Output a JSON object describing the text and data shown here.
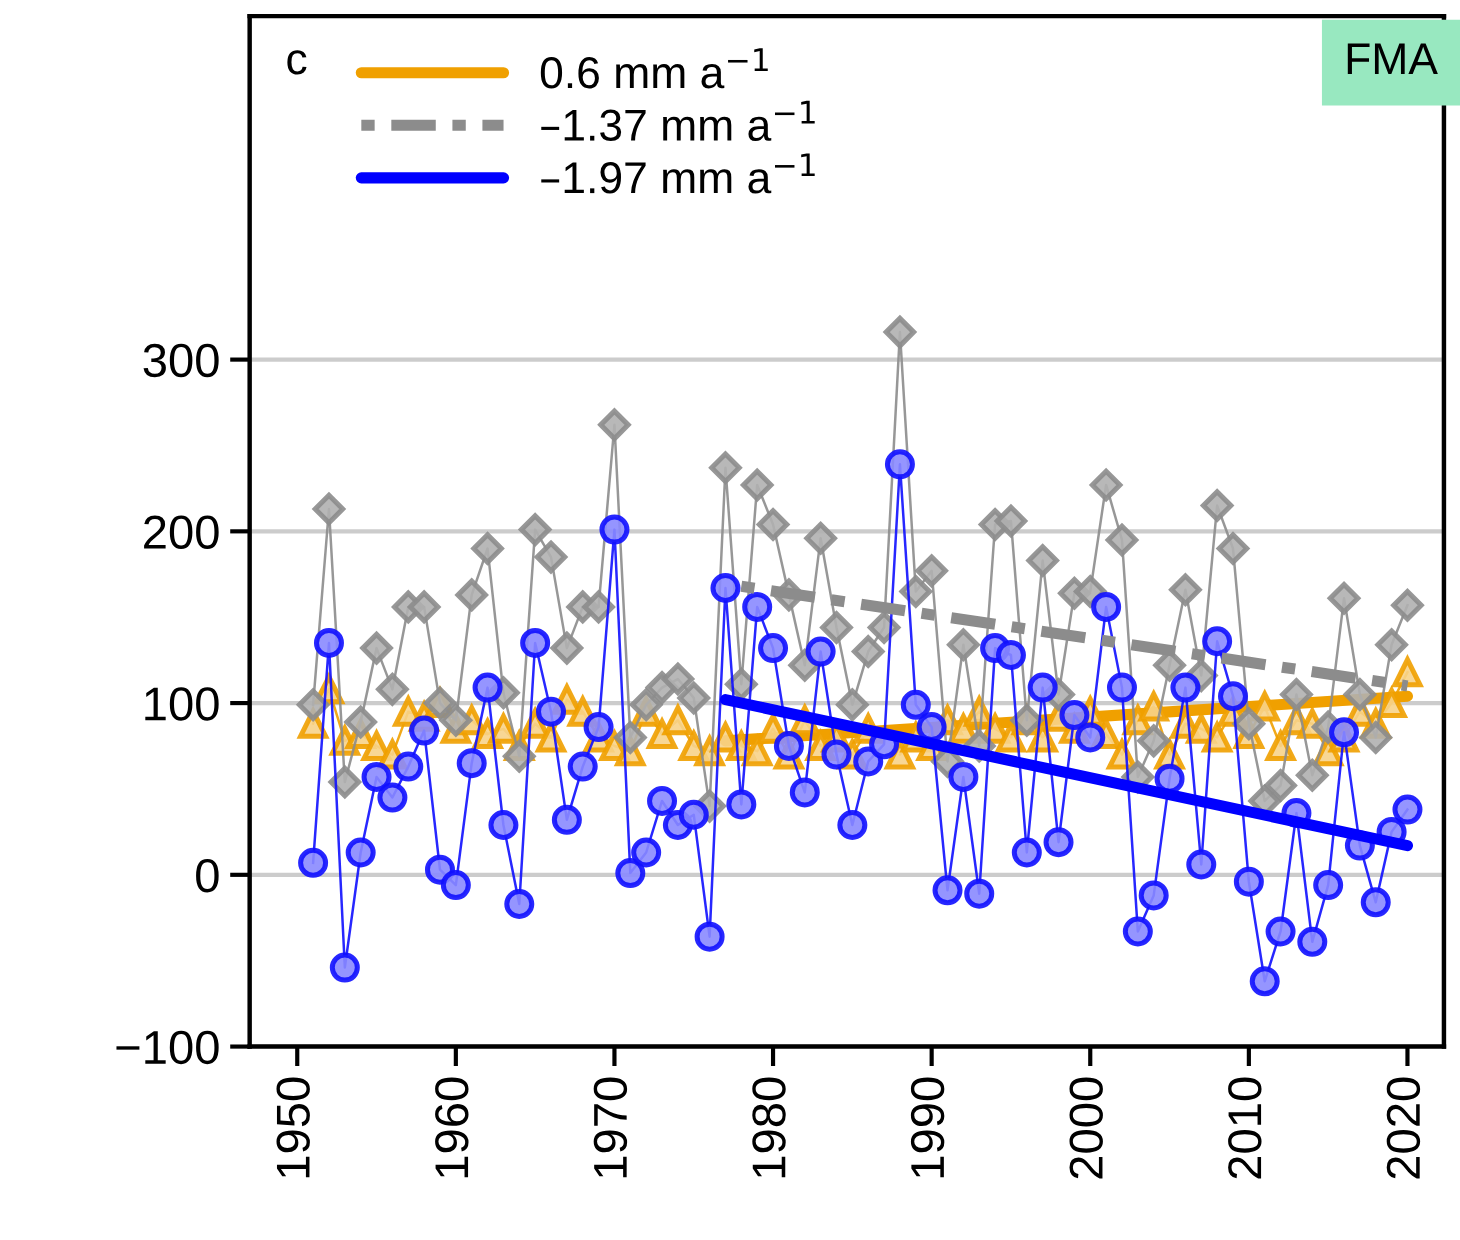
{
  "chart_data": {
    "type": "line",
    "annotations": [
      "c",
      "FMA"
    ],
    "xlim": [
      1947,
      2022.3
    ],
    "xticks": [
      1950,
      1960,
      1970,
      1980,
      1990,
      2000,
      2010,
      2020
    ],
    "ylim": [
      -100,
      500
    ],
    "yticks": [
      {
        "value": -100,
        "label": "−100"
      },
      0,
      100,
      200,
      300
    ],
    "grid": "y",
    "legend": "top left",
    "series": [
      {
        "color": "#f0a000",
        "marker": "triangle",
        "line_style": "solid",
        "x": [
          1951,
          1952,
          1953,
          1954,
          1955,
          1956,
          1957,
          1958,
          1959,
          1960,
          1961,
          1962,
          1963,
          1964,
          1965,
          1966,
          1967,
          1968,
          1969,
          1970,
          1971,
          1972,
          1973,
          1974,
          1975,
          1976,
          1977,
          1978,
          1979,
          1980,
          1981,
          1982,
          1983,
          1984,
          1985,
          1986,
          1987,
          1988,
          1989,
          1990,
          1991,
          1992,
          1993,
          1994,
          1995,
          1996,
          1997,
          1998,
          1999,
          2000,
          2001,
          2002,
          2003,
          2004,
          2005,
          2006,
          2007,
          2008,
          2009,
          2010,
          2011,
          2012,
          2013,
          2014,
          2015,
          2016,
          2017,
          2018,
          2019,
          2020
        ],
        "values": [
          88,
          108,
          78,
          82,
          75,
          70,
          95,
          92,
          100,
          85,
          90,
          82,
          85,
          75,
          88,
          80,
          102,
          95,
          80,
          75,
          72,
          95,
          82,
          90,
          75,
          72,
          80,
          75,
          72,
          85,
          70,
          90,
          75,
          80,
          70,
          85,
          null,
          70,
          80,
          75,
          90,
          85,
          95,
          85,
          80,
          90,
          80,
          92,
          85,
          95,
          82,
          70,
          90,
          98,
          70,
          88,
          85,
          80,
          95,
          82,
          98,
          75,
          90,
          88,
          72,
          80,
          95,
          88,
          100,
          118
        ]
      },
      {
        "color": "#8c8c8c",
        "marker": "diamond",
        "line_style": "solid",
        "x": [
          1951,
          1952,
          1953,
          1954,
          1955,
          1956,
          1957,
          1958,
          1959,
          1960,
          1961,
          1962,
          1963,
          1964,
          1965,
          1966,
          1967,
          1968,
          1969,
          1970,
          1971,
          1972,
          1973,
          1974,
          1975,
          1976,
          1977,
          1978,
          1979,
          1980,
          1981,
          1982,
          1983,
          1984,
          1985,
          1986,
          1987,
          1988,
          1989,
          1990,
          1991,
          1992,
          1993,
          1994,
          1995,
          1996,
          1997,
          1998,
          1999,
          2000,
          2001,
          2002,
          2003,
          2004,
          2005,
          2006,
          2007,
          2008,
          2009,
          2010,
          2011,
          2012,
          2013,
          2014,
          2015,
          2016,
          2017,
          2018,
          2019,
          2020
        ],
        "values": [
          99,
          213,
          54,
          89,
          132,
          108,
          156,
          156,
          100,
          90,
          163,
          190,
          106,
          69,
          201,
          185,
          132,
          156,
          156,
          262,
          80,
          99,
          109,
          114,
          103,
          40,
          237,
          111,
          227,
          204,
          163,
          122,
          196,
          144,
          99,
          130,
          144,
          316,
          165,
          177,
          66,
          134,
          75,
          204,
          206,
          90,
          183,
          105,
          164,
          165,
          227,
          195,
          57,
          78,
          122,
          166,
          116,
          215,
          190,
          88,
          43,
          52,
          105,
          58,
          86,
          161,
          105,
          80,
          134,
          157
        ]
      },
      {
        "color": "#1010ff",
        "marker": "circle",
        "line_style": "solid",
        "x": [
          1951,
          1952,
          1953,
          1954,
          1955,
          1956,
          1957,
          1958,
          1959,
          1960,
          1961,
          1962,
          1963,
          1964,
          1965,
          1966,
          1967,
          1968,
          1969,
          1970,
          1971,
          1972,
          1973,
          1974,
          1975,
          1976,
          1977,
          1978,
          1979,
          1980,
          1981,
          1982,
          1983,
          1984,
          1985,
          1986,
          1987,
          1988,
          1989,
          1990,
          1991,
          1992,
          1993,
          1994,
          1995,
          1996,
          1997,
          1998,
          1999,
          2000,
          2001,
          2002,
          2003,
          2004,
          2005,
          2006,
          2007,
          2008,
          2009,
          2010,
          2011,
          2012,
          2013,
          2014,
          2015,
          2016,
          2017,
          2018,
          2019,
          2020
        ],
        "values": [
          7,
          135,
          -54,
          13,
          57,
          45,
          63,
          84,
          3,
          -6,
          65,
          109,
          29,
          -17,
          135,
          95,
          32,
          63,
          86,
          201,
          1,
          13,
          43,
          29,
          35,
          -36,
          167,
          41,
          156,
          132,
          75,
          48,
          130,
          70,
          29,
          66,
          76,
          239,
          99,
          86,
          -9,
          57,
          -11,
          132,
          128,
          13,
          109,
          19,
          93,
          80,
          156,
          109,
          -33,
          -12,
          56,
          109,
          6,
          136,
          104,
          -4,
          -62,
          -33,
          36,
          -39,
          -6,
          83,
          17,
          -16,
          25,
          38
        ]
      },
      {
        "name": "0.6 mm a$^{−1}$",
        "color": "#f0a000",
        "marker": "none",
        "line_style": "solid",
        "x": [
          1977,
          2020
        ],
        "values": [
          78,
          104
        ]
      },
      {
        "name": "–1.37 mm a$^{−1}$",
        "color": "#8c8c8c",
        "marker": "none",
        "line_style": "dashed",
        "x": [
          1978,
          2020
        ],
        "values": [
          168,
          110
        ]
      },
      {
        "name": "–1.97 mm a$^{−1}$",
        "color": "#0000ff",
        "marker": "none",
        "line_style": "solid",
        "x": [
          1977,
          2020
        ],
        "values": [
          102,
          17
        ]
      }
    ]
  }
}
